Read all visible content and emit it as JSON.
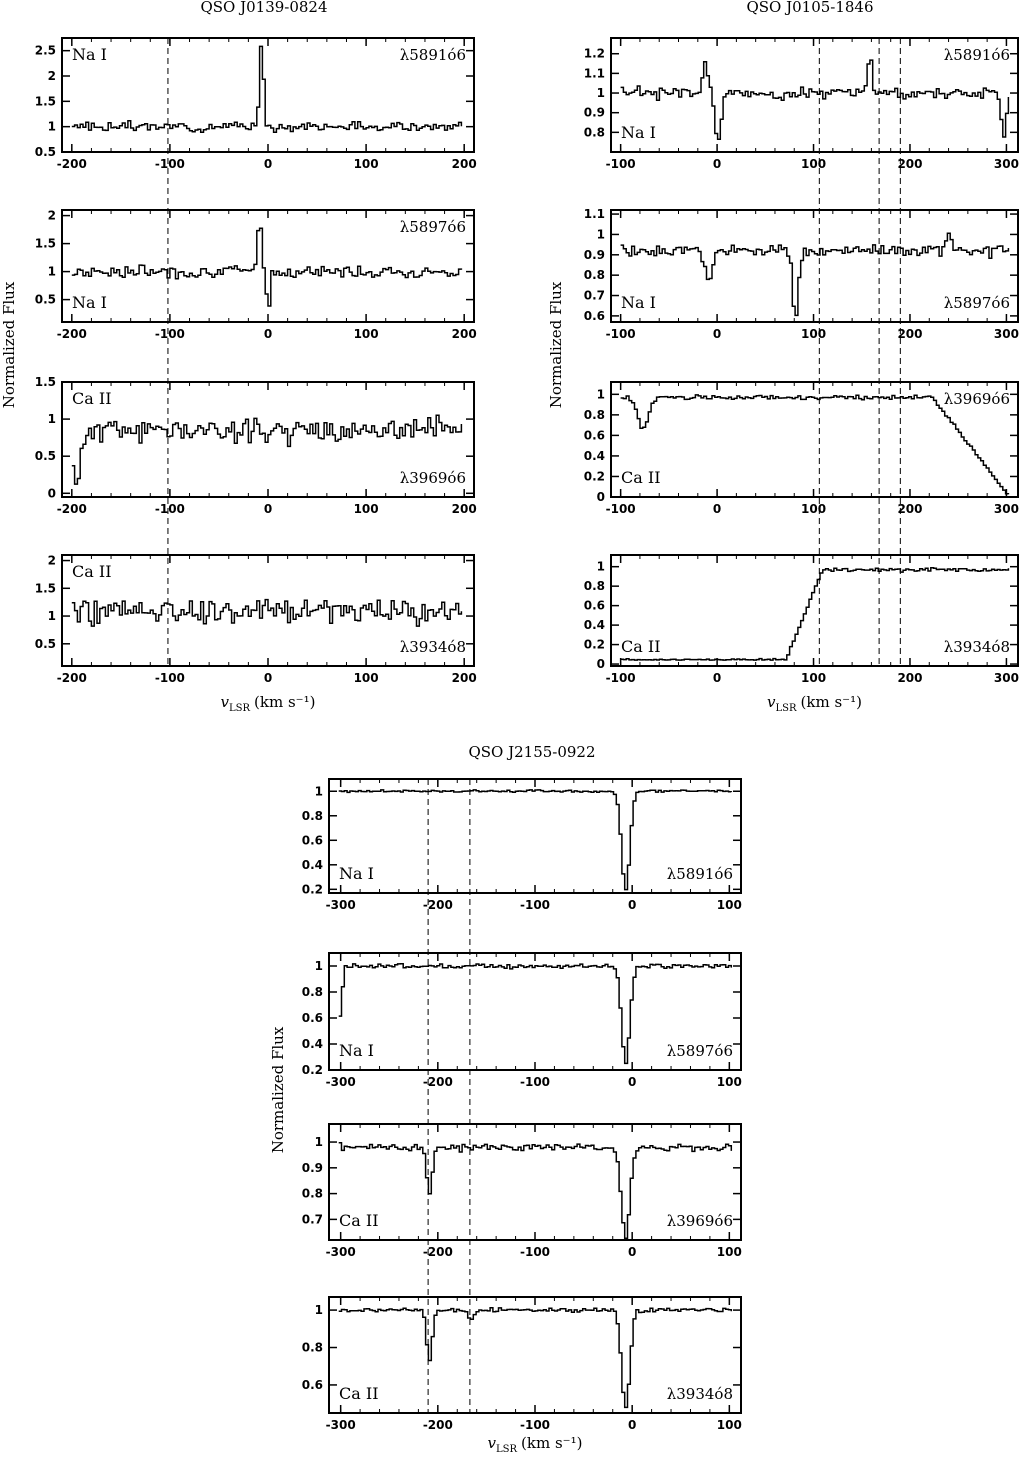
{
  "figure": {
    "groups": [
      {
        "title": "QSO J0139-0824",
        "ylabel": "Normalized Flux",
        "xlabel_main": "v",
        "xlabel_sub": "LSR",
        "xlabel_units": "(km s⁻¹)",
        "xlim": [
          -210,
          210
        ],
        "xticks": [
          -200,
          -100,
          0,
          100,
          200
        ],
        "dashed_lines": [
          -102
        ],
        "panels": [
          {
            "ion": "Na I",
            "line": "λ5891ó6",
            "ion_pos": "top-left",
            "line_pos": "top-right",
            "ylim": [
              0.5,
              2.75
            ],
            "yticks": [
              0.5,
              1,
              1.5,
              2,
              2.5
            ],
            "yticklabels": [
              "0.5",
              "1",
              "1.5",
              "2",
              "2.5"
            ],
            "profile": {
              "seed": 3,
              "noise": 0.13,
              "features": [
                {
                  "v": -8,
                  "depth": -1.65,
                  "width": 3
                }
              ],
              "edges": []
            }
          },
          {
            "ion": "Na I",
            "line": "λ5897ó6",
            "ion_pos": "bottom-left",
            "line_pos": "top-right",
            "ylim": [
              0.1,
              2.1
            ],
            "yticks": [
              0.5,
              1,
              1.5,
              2
            ],
            "yticklabels": [
              "0.5",
              "1",
              "1.5",
              "2"
            ],
            "profile": {
              "seed": 7,
              "noise": 0.16,
              "features": [
                {
                  "v": -10,
                  "depth": -1.0,
                  "width": 3
                },
                {
                  "v": -1,
                  "depth": 0.85,
                  "width": 2
                }
              ],
              "edges": []
            }
          },
          {
            "ion": "Ca II",
            "line": "λ3969ó6",
            "ion_pos": "top-left",
            "line_pos": "bottom-right",
            "ylim": [
              -0.05,
              1.5
            ],
            "yticks": [
              0,
              0.5,
              1,
              1.5
            ],
            "yticklabels": [
              "0",
              "0.5",
              "1",
              "1.5"
            ],
            "profile": {
              "seed": 11,
              "noise": 0.24,
              "features": [
                {
                  "v": -196,
                  "depth": 0.7,
                  "width": 6
                }
              ],
              "edges": []
            }
          },
          {
            "ion": "Ca II",
            "line": "λ3934ó8",
            "ion_pos": "top-left",
            "line_pos": "bottom-right",
            "ylim": [
              0.1,
              2.1
            ],
            "yticks": [
              0.5,
              1,
              1.5,
              2
            ],
            "yticklabels": [
              "0.5",
              "1",
              "1.5",
              "2"
            ],
            "profile": {
              "seed": 19,
              "noise": 0.36,
              "features": [],
              "edges": []
            }
          }
        ]
      },
      {
        "title": "QSO J0105-1846",
        "ylabel": "Normalized Flux",
        "xlabel_main": "v",
        "xlabel_sub": "LSR",
        "xlabel_units": "(km s⁻¹)",
        "xlim": [
          -110,
          312
        ],
        "xticks": [
          -100,
          0,
          100,
          200,
          300
        ],
        "dashed_lines": [
          106,
          168,
          190
        ],
        "panels": [
          {
            "ion": "Na I",
            "line": "λ5891ó6",
            "ion_pos": "bottom-left",
            "line_pos": "top-right",
            "ylim": [
              0.7,
              1.28
            ],
            "yticks": [
              0.8,
              0.9,
              1,
              1.1,
              1.2
            ],
            "yticklabels": [
              "0.8",
              "0.9",
              "1",
              "1.1",
              "1.2"
            ],
            "profile": {
              "seed": 23,
              "noise": 0.045,
              "features": [
                {
                  "v": 0,
                  "depth": 0.25,
                  "width": 4
                },
                {
                  "v": -14,
                  "depth": -0.17,
                  "width": 3
                },
                {
                  "v": 157,
                  "depth": -0.2,
                  "width": 3
                },
                {
                  "v": 296,
                  "depth": 0.2,
                  "width": 4
                }
              ],
              "edges": []
            }
          },
          {
            "ion": "Na I",
            "line": "λ5897ó6",
            "ion_pos": "bottom-left",
            "line_pos": "bottom-right",
            "ylim": [
              0.57,
              1.12
            ],
            "yticks": [
              0.6,
              0.7,
              0.8,
              0.9,
              1,
              1.1
            ],
            "yticklabels": [
              "0.6",
              "0.7",
              "0.8",
              "0.9",
              "1",
              "1.1"
            ],
            "profile": {
              "seed": 29,
              "noise": 0.04,
              "features": [
                {
                  "v": -10,
                  "depth": 0.15,
                  "width": 6
                },
                {
                  "v": 80,
                  "depth": 0.35,
                  "width": 4
                },
                {
                  "v": 240,
                  "depth": -0.12,
                  "width": 3
                }
              ],
              "edges": []
            }
          },
          {
            "ion": "Ca II",
            "line": "λ3969ó6",
            "ion_pos": "bottom-left",
            "line_pos": "top-right",
            "ylim": [
              0.0,
              1.12
            ],
            "yticks": [
              0,
              0.2,
              0.4,
              0.6,
              0.8,
              1
            ],
            "yticklabels": [
              "0",
              "0.2",
              "0.4",
              "0.6",
              "0.8",
              "1"
            ],
            "profile": {
              "seed": 31,
              "noise": 0.03,
              "features": [
                {
                  "v": -78,
                  "depth": 0.3,
                  "width": 8
                }
              ],
              "edges": [
                {
                  "type": "falling",
                  "v0": 222,
                  "v1": 300,
                  "to": 0.02
                }
              ]
            }
          },
          {
            "ion": "Ca II",
            "line": "λ3934ó8",
            "ion_pos": "bottom-left",
            "line_pos": "bottom-right",
            "ylim": [
              -0.02,
              1.12
            ],
            "yticks": [
              0,
              0.2,
              0.4,
              0.6,
              0.8,
              1
            ],
            "yticklabels": [
              "0",
              "0.2",
              "0.4",
              "0.6",
              "0.8",
              "1"
            ],
            "profile": {
              "seed": 37,
              "noise": 0.03,
              "features": [],
              "edges": [
                {
                  "type": "rising",
                  "v0": 70,
                  "v1": 108,
                  "from": 0.04
                }
              ]
            }
          }
        ]
      },
      {
        "title": "QSO J2155-0922",
        "ylabel": "Normalized Flux",
        "xlabel_main": "v",
        "xlabel_sub": "LSR",
        "xlabel_units": "(km s⁻¹)",
        "xlim": [
          -312,
          112
        ],
        "xticks": [
          -300,
          -200,
          -100,
          0,
          100
        ],
        "dashed_lines": [
          -210,
          -167
        ],
        "panels": [
          {
            "ion": "Na I",
            "line": "λ5891ó6",
            "ion_pos": "bottom-left",
            "line_pos": "bottom-right",
            "ylim": [
              0.17,
              1.1
            ],
            "yticks": [
              0.2,
              0.4,
              0.6,
              0.8,
              1
            ],
            "yticklabels": [
              "0.2",
              "0.4",
              "0.6",
              "0.8",
              "1"
            ],
            "profile": {
              "seed": 41,
              "noise": 0.015,
              "features": [
                {
                  "v": -8,
                  "depth": 0.8,
                  "width": 6
                }
              ],
              "edges": []
            }
          },
          {
            "ion": "Na I",
            "line": "λ5897ó6",
            "ion_pos": "bottom-left",
            "line_pos": "bottom-right",
            "ylim": [
              0.2,
              1.1
            ],
            "yticks": [
              0.2,
              0.4,
              0.6,
              0.8,
              1
            ],
            "yticklabels": [
              "0.2",
              "0.4",
              "0.6",
              "0.8",
              "1"
            ],
            "profile": {
              "seed": 43,
              "noise": 0.025,
              "features": [
                {
                  "v": -8,
                  "depth": 0.75,
                  "width": 6
                },
                {
                  "v": -302,
                  "depth": 0.4,
                  "width": 3
                }
              ],
              "edges": []
            }
          },
          {
            "ion": "Ca II",
            "line": "λ3969ó6",
            "ion_pos": "bottom-left",
            "line_pos": "bottom-right",
            "ylim": [
              0.62,
              1.07
            ],
            "yticks": [
              0.7,
              0.8,
              0.9,
              1
            ],
            "yticklabels": [
              "0.7",
              "0.8",
              "0.9",
              "1"
            ],
            "profile": {
              "seed": 47,
              "noise": 0.02,
              "features": [
                {
                  "v": -210,
                  "depth": 0.18,
                  "width": 4
                },
                {
                  "v": -8,
                  "depth": 0.35,
                  "width": 6
                }
              ],
              "edges": []
            }
          },
          {
            "ion": "Ca II",
            "line": "λ3934ó8",
            "ion_pos": "bottom-left",
            "line_pos": "bottom-right",
            "ylim": [
              0.45,
              1.07
            ],
            "yticks": [
              0.6,
              0.8,
              1
            ],
            "yticklabels": [
              "0.6",
              "0.8",
              "1"
            ],
            "profile": {
              "seed": 53,
              "noise": 0.015,
              "features": [
                {
                  "v": -210,
                  "depth": 0.27,
                  "width": 4
                },
                {
                  "v": -167,
                  "depth": 0.05,
                  "width": 4
                },
                {
                  "v": -8,
                  "depth": 0.52,
                  "width": 6
                }
              ],
              "edges": []
            }
          }
        ]
      }
    ]
  },
  "chart_data": [
    {
      "type": "line",
      "title": "QSO J0139-0824",
      "xlabel": "v_LSR (km s⁻¹)",
      "ylabel": "Normalized Flux",
      "series": [
        {
          "name": "Na I λ5891ó6",
          "xlim": [
            -200,
            200
          ],
          "ylim": [
            0.5,
            2.75
          ],
          "continuum": 1.0,
          "peak": {
            "x": -8,
            "y": 2.65
          }
        },
        {
          "name": "Na I λ5897ó6",
          "xlim": [
            -200,
            200
          ],
          "ylim": [
            0.1,
            2.1
          ],
          "continuum": 1.0,
          "peak": {
            "x": -10,
            "y": 2.0
          },
          "min": {
            "x": -1,
            "y": 0.15
          }
        },
        {
          "name": "Ca II λ3969ó6",
          "xlim": [
            -200,
            200
          ],
          "ylim": [
            0,
            1.5
          ],
          "continuum": 0.85
        },
        {
          "name": "Ca II λ3934ó8",
          "xlim": [
            -200,
            200
          ],
          "ylim": [
            0.1,
            2.1
          ],
          "continuum": 1.1
        }
      ],
      "reference_lines_x": [
        -102
      ]
    },
    {
      "type": "line",
      "title": "QSO J0105-1846",
      "xlabel": "v_LSR (km s⁻¹)",
      "ylabel": "Normalized Flux",
      "series": [
        {
          "name": "Na I λ5891ó6",
          "xlim": [
            -100,
            300
          ],
          "ylim": [
            0.7,
            1.28
          ],
          "continuum": 1.0,
          "min": {
            "x": 0,
            "y": 0.75
          }
        },
        {
          "name": "Na I λ5897ó6",
          "xlim": [
            -100,
            300
          ],
          "ylim": [
            0.57,
            1.12
          ],
          "continuum": 0.92,
          "min": {
            "x": 80,
            "y": 0.58
          }
        },
        {
          "name": "Ca II λ3969ó6",
          "xlim": [
            -100,
            300
          ],
          "ylim": [
            0,
            1.12
          ],
          "continuum": 0.97,
          "min": {
            "x": 300,
            "y": 0.02
          }
        },
        {
          "name": "Ca II λ3934ó8",
          "xlim": [
            -100,
            300
          ],
          "ylim": [
            0,
            1.12
          ],
          "continuum": 0.97,
          "min": {
            "x": 0,
            "y": 0.04
          }
        }
      ],
      "reference_lines_x": [
        106,
        168,
        190
      ]
    },
    {
      "type": "line",
      "title": "QSO J2155-0922",
      "xlabel": "v_LSR (km s⁻¹)",
      "ylabel": "Normalized Flux",
      "series": [
        {
          "name": "Na I λ5891ó6",
          "xlim": [
            -300,
            100
          ],
          "ylim": [
            0.17,
            1.1
          ],
          "continuum": 1.0,
          "min": {
            "x": -8,
            "y": 0.2
          }
        },
        {
          "name": "Na I λ5897ó6",
          "xlim": [
            -300,
            100
          ],
          "ylim": [
            0.2,
            1.1
          ],
          "continuum": 1.0,
          "min": {
            "x": -8,
            "y": 0.25
          }
        },
        {
          "name": "Ca II λ3969ó6",
          "xlim": [
            -300,
            100
          ],
          "ylim": [
            0.62,
            1.07
          ],
          "continuum": 0.98,
          "min": {
            "x": -8,
            "y": 0.63
          }
        },
        {
          "name": "Ca II λ3934ó8",
          "xlim": [
            -300,
            100
          ],
          "ylim": [
            0.45,
            1.07
          ],
          "continuum": 1.0,
          "min": {
            "x": -8,
            "y": 0.48
          }
        }
      ],
      "reference_lines_x": [
        -210,
        -167
      ]
    }
  ]
}
